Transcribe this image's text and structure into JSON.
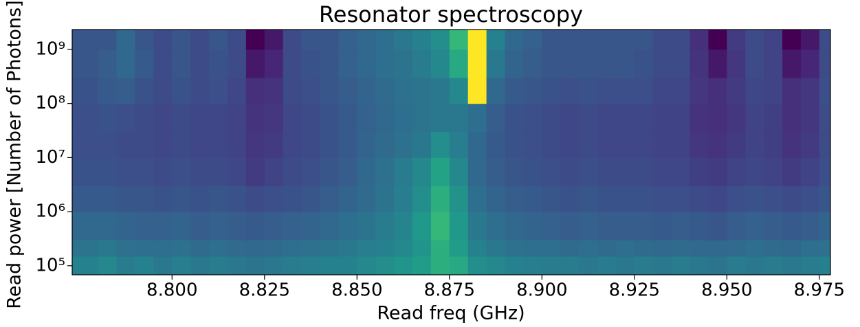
{
  "chart_data": {
    "type": "heatmap",
    "title": "Resonator spectroscopy",
    "xlabel": "Read freq (GHz)",
    "ylabel": "Read power [Number of Photons]",
    "xlim": [
      8.773,
      8.978
    ],
    "ylim": [
      68000,
      2330000000
    ],
    "yscale": "log",
    "colormap": "viridis",
    "xticks": [
      {
        "value": 8.8,
        "label": "8.800"
      },
      {
        "value": 8.825,
        "label": "8.825"
      },
      {
        "value": 8.85,
        "label": "8.850"
      },
      {
        "value": 8.875,
        "label": "8.875"
      },
      {
        "value": 8.9,
        "label": "8.900"
      },
      {
        "value": 8.925,
        "label": "8.925"
      },
      {
        "value": 8.95,
        "label": "8.950"
      },
      {
        "value": 8.975,
        "label": "8.975"
      }
    ],
    "yticks": [
      {
        "value": 100000,
        "label": "10⁵"
      },
      {
        "value": 1000000,
        "label": "10⁶"
      },
      {
        "value": 10000000,
        "label": "10⁷"
      },
      {
        "value": 100000000,
        "label": "10⁸"
      },
      {
        "value": 1000000000,
        "label": "10⁹"
      }
    ],
    "xbins": [
      8.773,
      8.78,
      8.785,
      8.79,
      8.795,
      8.8,
      8.805,
      8.81,
      8.815,
      8.82,
      8.825,
      8.83,
      8.835,
      8.84,
      8.845,
      8.85,
      8.855,
      8.86,
      8.865,
      8.87,
      8.875,
      8.88,
      8.885,
      8.89,
      8.895,
      8.9,
      8.905,
      8.91,
      8.915,
      8.92,
      8.925,
      8.93,
      8.935,
      8.94,
      8.945,
      8.95,
      8.955,
      8.96,
      8.965,
      8.97,
      8.975,
      8.978
    ],
    "ybins": [
      68000,
      150000,
      300000,
      1000000,
      3000000,
      10000000,
      30000000,
      100000000,
      300000000,
      1000000000,
      2330000000
    ],
    "z": [
      [
        0.58,
        0.6,
        0.56,
        0.58,
        0.55,
        0.57,
        0.55,
        0.56,
        0.55,
        0.54,
        0.55,
        0.56,
        0.57,
        0.58,
        0.58,
        0.6,
        0.62,
        0.64,
        0.66,
        0.72,
        0.7,
        0.62,
        0.6,
        0.58,
        0.57,
        0.56,
        0.56,
        0.55,
        0.56,
        0.55,
        0.56,
        0.55,
        0.56,
        0.55,
        0.54,
        0.56,
        0.55,
        0.56,
        0.55,
        0.56,
        0.58
      ],
      [
        0.54,
        0.55,
        0.53,
        0.52,
        0.52,
        0.53,
        0.51,
        0.52,
        0.51,
        0.5,
        0.51,
        0.52,
        0.53,
        0.54,
        0.55,
        0.57,
        0.58,
        0.6,
        0.64,
        0.72,
        0.66,
        0.58,
        0.55,
        0.53,
        0.52,
        0.52,
        0.51,
        0.52,
        0.51,
        0.52,
        0.51,
        0.5,
        0.51,
        0.5,
        0.5,
        0.51,
        0.52,
        0.51,
        0.5,
        0.52,
        0.53
      ],
      [
        0.5,
        0.5,
        0.49,
        0.48,
        0.48,
        0.49,
        0.47,
        0.48,
        0.47,
        0.46,
        0.47,
        0.48,
        0.49,
        0.5,
        0.52,
        0.54,
        0.56,
        0.59,
        0.65,
        0.75,
        0.65,
        0.55,
        0.52,
        0.5,
        0.49,
        0.48,
        0.47,
        0.48,
        0.47,
        0.47,
        0.47,
        0.46,
        0.47,
        0.46,
        0.45,
        0.47,
        0.48,
        0.47,
        0.46,
        0.47,
        0.49
      ],
      [
        0.46,
        0.46,
        0.45,
        0.45,
        0.44,
        0.45,
        0.44,
        0.45,
        0.44,
        0.42,
        0.43,
        0.44,
        0.45,
        0.47,
        0.49,
        0.51,
        0.54,
        0.57,
        0.62,
        0.72,
        0.63,
        0.52,
        0.49,
        0.47,
        0.46,
        0.45,
        0.44,
        0.45,
        0.44,
        0.44,
        0.44,
        0.43,
        0.43,
        0.42,
        0.41,
        0.43,
        0.44,
        0.43,
        0.42,
        0.43,
        0.45
      ],
      [
        0.44,
        0.44,
        0.43,
        0.43,
        0.42,
        0.43,
        0.42,
        0.42,
        0.41,
        0.38,
        0.4,
        0.42,
        0.43,
        0.45,
        0.47,
        0.5,
        0.53,
        0.56,
        0.6,
        0.68,
        0.6,
        0.5,
        0.47,
        0.45,
        0.44,
        0.43,
        0.42,
        0.43,
        0.42,
        0.42,
        0.42,
        0.41,
        0.41,
        0.39,
        0.38,
        0.4,
        0.41,
        0.4,
        0.38,
        0.4,
        0.43
      ],
      [
        0.43,
        0.43,
        0.42,
        0.42,
        0.41,
        0.42,
        0.41,
        0.41,
        0.4,
        0.37,
        0.38,
        0.41,
        0.42,
        0.44,
        0.46,
        0.49,
        0.51,
        0.53,
        0.55,
        0.62,
        0.57,
        0.5,
        0.46,
        0.44,
        0.43,
        0.42,
        0.41,
        0.42,
        0.41,
        0.41,
        0.41,
        0.4,
        0.4,
        0.37,
        0.36,
        0.38,
        0.4,
        0.39,
        0.36,
        0.38,
        0.42
      ],
      [
        0.43,
        0.44,
        0.43,
        0.42,
        0.41,
        0.42,
        0.41,
        0.41,
        0.4,
        0.36,
        0.37,
        0.41,
        0.42,
        0.44,
        0.46,
        0.48,
        0.5,
        0.52,
        0.54,
        0.55,
        0.55,
        0.52,
        0.47,
        0.44,
        0.43,
        0.42,
        0.41,
        0.42,
        0.41,
        0.41,
        0.41,
        0.4,
        0.4,
        0.36,
        0.35,
        0.37,
        0.4,
        0.39,
        0.35,
        0.37,
        0.42
      ],
      [
        0.44,
        0.46,
        0.47,
        0.44,
        0.42,
        0.44,
        0.42,
        0.43,
        0.41,
        0.35,
        0.36,
        0.42,
        0.43,
        0.45,
        0.47,
        0.49,
        0.51,
        0.53,
        0.54,
        0.55,
        0.6,
        1.0,
        0.5,
        0.46,
        0.45,
        0.44,
        0.43,
        0.44,
        0.43,
        0.43,
        0.43,
        0.41,
        0.41,
        0.37,
        0.35,
        0.38,
        0.41,
        0.4,
        0.35,
        0.37,
        0.43
      ],
      [
        0.45,
        0.47,
        0.5,
        0.46,
        0.42,
        0.45,
        0.42,
        0.44,
        0.42,
        0.3,
        0.33,
        0.42,
        0.44,
        0.45,
        0.48,
        0.5,
        0.52,
        0.54,
        0.56,
        0.6,
        0.7,
        1.0,
        0.55,
        0.49,
        0.47,
        0.45,
        0.45,
        0.45,
        0.45,
        0.45,
        0.44,
        0.42,
        0.42,
        0.36,
        0.3,
        0.37,
        0.42,
        0.4,
        0.3,
        0.33,
        0.42
      ],
      [
        0.45,
        0.45,
        0.5,
        0.45,
        0.42,
        0.45,
        0.42,
        0.45,
        0.42,
        0.25,
        0.3,
        0.42,
        0.45,
        0.45,
        0.48,
        0.5,
        0.52,
        0.55,
        0.58,
        0.62,
        0.75,
        1.0,
        0.58,
        0.5,
        0.48,
        0.45,
        0.45,
        0.45,
        0.45,
        0.45,
        0.45,
        0.42,
        0.42,
        0.35,
        0.25,
        0.38,
        0.42,
        0.4,
        0.25,
        0.3,
        0.42
      ]
    ]
  }
}
